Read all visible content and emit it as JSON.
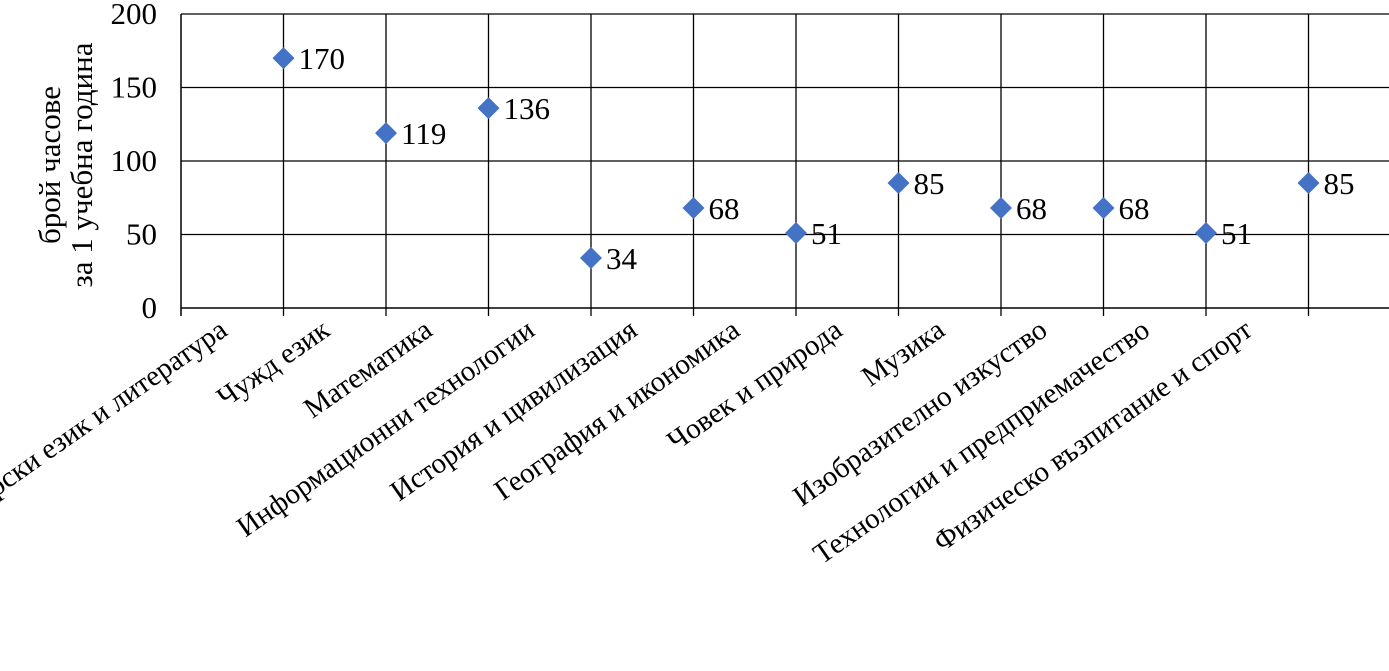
{
  "chart_data": {
    "type": "scatter",
    "title": "",
    "xlabel": "",
    "ylabel_lines": [
      "брой часове",
      "за 1 учебна година"
    ],
    "ylim": [
      0,
      200
    ],
    "yticks": [
      0,
      50,
      100,
      150,
      200
    ],
    "grid": true,
    "marker": "diamond",
    "marker_color": "#4472C4",
    "categories": [
      "Български език и литература",
      "Чужд език",
      "Математика",
      "Информационни технологии",
      "История и цивилизация",
      "География и икономика",
      "Човек и природа",
      "Музика",
      "Изобразително изкуство",
      "Технологии и предприемачество",
      "Физическо възпитание и спорт"
    ],
    "points": [
      {
        "category": "Чужд език",
        "value": 170,
        "label": "170"
      },
      {
        "category": "Математика",
        "value": 119,
        "label": "119"
      },
      {
        "category": "Информационни технологии",
        "value": 136,
        "label": "136"
      },
      {
        "category": "История и цивилизация",
        "value": 34,
        "label": "34"
      },
      {
        "category": "География и икономика",
        "value": 68,
        "label": "68"
      },
      {
        "category": "Човек и природа",
        "value": 51,
        "label": "51"
      },
      {
        "category": "Музика",
        "value": 85,
        "label": "85"
      },
      {
        "category": "Изобразително изкуство",
        "value": 68,
        "label": "68"
      },
      {
        "category": "Технологии и предприемачество",
        "value": 68,
        "label": "68"
      },
      {
        "category": "Физическо възпитание и спорт",
        "value": 51,
        "label": "51"
      },
      {
        "category": "",
        "value": 85,
        "label": "85"
      }
    ]
  }
}
